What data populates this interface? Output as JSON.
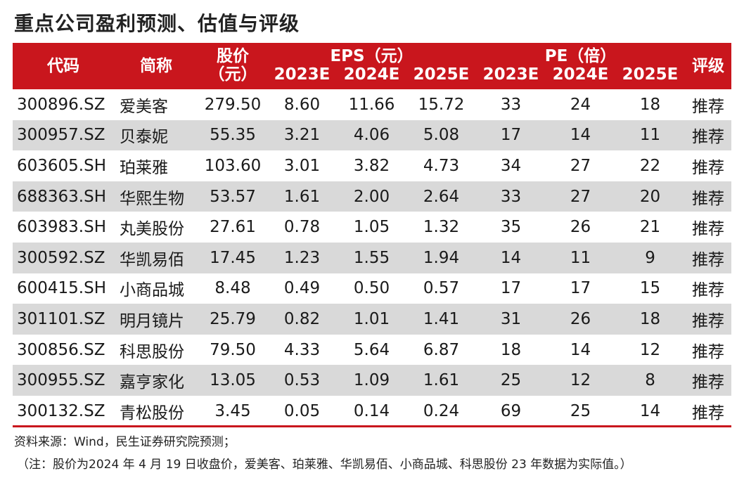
{
  "title": "重点公司盈利预测、估值与评级",
  "header": {
    "code": "代码",
    "name": "简称",
    "price_line1": "股价",
    "price_line2": "（元）",
    "eps_group": "EPS（元）",
    "pe_group": "PE（倍）",
    "years": [
      "2023E",
      "2024E",
      "2025E"
    ],
    "rating": "评级"
  },
  "rows": [
    {
      "code": "300896.SZ",
      "name": "爱美客",
      "price": "279.50",
      "eps2023": "8.60",
      "eps2024": "11.66",
      "eps2025": "15.72",
      "pe2023": "33",
      "pe2024": "24",
      "pe2025": "18",
      "rating": "推荐"
    },
    {
      "code": "300957.SZ",
      "name": "贝泰妮",
      "price": "55.35",
      "eps2023": "3.21",
      "eps2024": "4.06",
      "eps2025": "5.08",
      "pe2023": "17",
      "pe2024": "14",
      "pe2025": "11",
      "rating": "推荐"
    },
    {
      "code": "603605.SH",
      "name": "珀莱雅",
      "price": "103.60",
      "eps2023": "3.01",
      "eps2024": "3.82",
      "eps2025": "4.73",
      "pe2023": "34",
      "pe2024": "27",
      "pe2025": "22",
      "rating": "推荐"
    },
    {
      "code": "688363.SH",
      "name": "华熙生物",
      "price": "53.57",
      "eps2023": "1.61",
      "eps2024": "2.00",
      "eps2025": "2.64",
      "pe2023": "33",
      "pe2024": "27",
      "pe2025": "20",
      "rating": "推荐"
    },
    {
      "code": "603983.SH",
      "name": "丸美股份",
      "price": "27.61",
      "eps2023": "0.78",
      "eps2024": "1.05",
      "eps2025": "1.32",
      "pe2023": "35",
      "pe2024": "26",
      "pe2025": "21",
      "rating": "推荐"
    },
    {
      "code": "300592.SZ",
      "name": "华凯易佰",
      "price": "17.45",
      "eps2023": "1.23",
      "eps2024": "1.55",
      "eps2025": "1.94",
      "pe2023": "14",
      "pe2024": "11",
      "pe2025": "9",
      "rating": "推荐"
    },
    {
      "code": "600415.SH",
      "name": "小商品城",
      "price": "8.48",
      "eps2023": "0.49",
      "eps2024": "0.50",
      "eps2025": "0.57",
      "pe2023": "17",
      "pe2024": "17",
      "pe2025": "15",
      "rating": "推荐"
    },
    {
      "code": "301101.SZ",
      "name": "明月镜片",
      "price": "25.79",
      "eps2023": "0.82",
      "eps2024": "1.01",
      "eps2025": "1.41",
      "pe2023": "31",
      "pe2024": "26",
      "pe2025": "18",
      "rating": "推荐"
    },
    {
      "code": "300856.SZ",
      "name": "科思股份",
      "price": "79.50",
      "eps2023": "4.33",
      "eps2024": "5.64",
      "eps2025": "6.87",
      "pe2023": "18",
      "pe2024": "14",
      "pe2025": "12",
      "rating": "推荐"
    },
    {
      "code": "300955.SZ",
      "name": "嘉亨家化",
      "price": "13.05",
      "eps2023": "0.53",
      "eps2024": "1.09",
      "eps2025": "1.61",
      "pe2023": "25",
      "pe2024": "12",
      "pe2025": "8",
      "rating": "推荐"
    },
    {
      "code": "300132.SZ",
      "name": "青松股份",
      "price": "3.45",
      "eps2023": "0.05",
      "eps2024": "0.14",
      "eps2025": "0.24",
      "pe2023": "69",
      "pe2024": "25",
      "pe2025": "14",
      "rating": "推荐"
    }
  ],
  "notes": {
    "source": "资料来源：Wind，民生证券研究院预测；",
    "footnote": "（注：股价为2024 年 4 月 19 日收盘价，爱美客、珀莱雅、华凯易佰、小商品城、科思股份 23 年数据为实际值。）"
  },
  "colors": {
    "header_bg": "#c9161d",
    "header_text": "#ffffff",
    "stripe_bg": "#d9d9d9"
  }
}
